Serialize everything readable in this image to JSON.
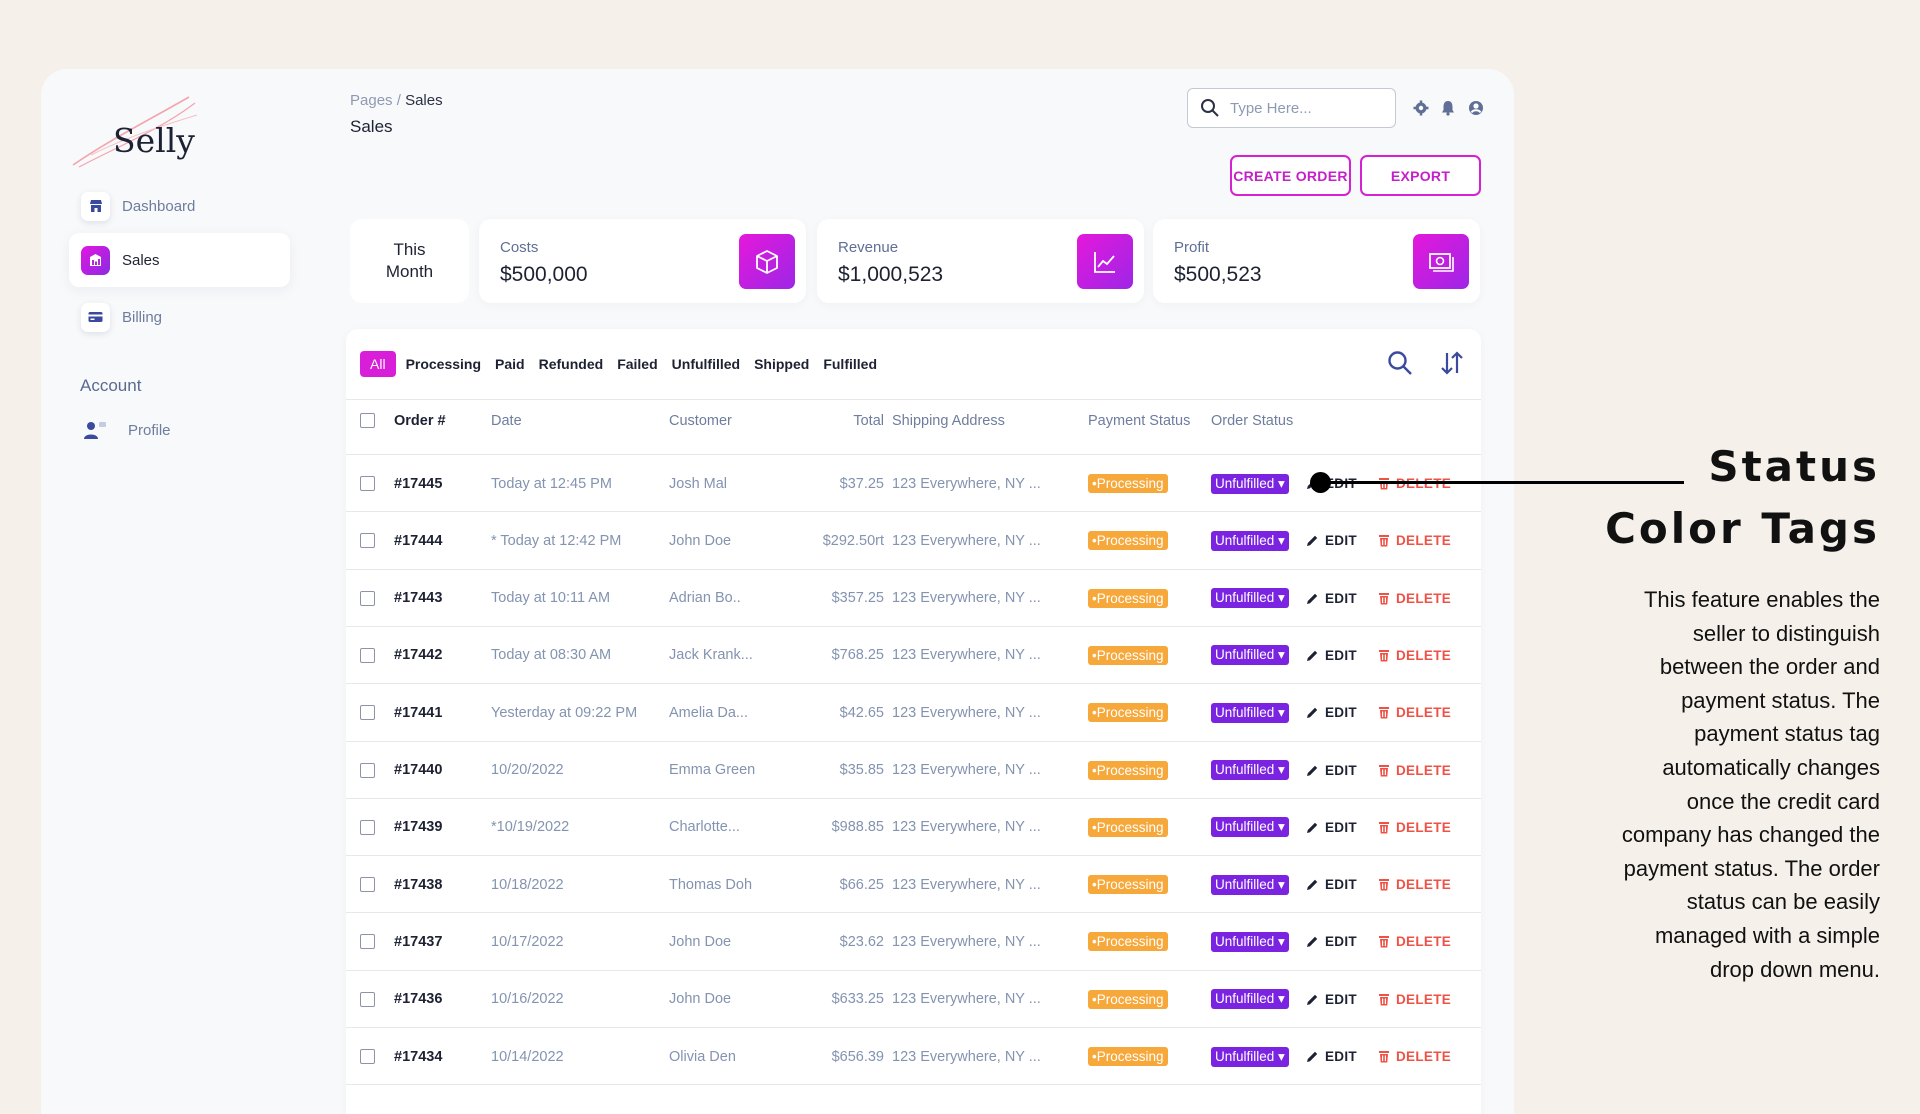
{
  "brand": {
    "name": "Selly"
  },
  "sidebar": {
    "items": [
      {
        "label": "Dashboard",
        "icon": "store-icon"
      },
      {
        "label": "Sales",
        "icon": "chart-bar-icon"
      },
      {
        "label": "Billing",
        "icon": "credit-card-icon"
      }
    ],
    "section_label": "Account",
    "account_items": [
      {
        "label": "Profile",
        "icon": "user-icon"
      }
    ]
  },
  "header": {
    "breadcrumb_root": "Pages",
    "breadcrumb_sep": "/",
    "breadcrumb_current": "Sales",
    "title": "Sales",
    "search_placeholder": "Type Here..."
  },
  "actions": {
    "create_order": "CREATE ORDER",
    "export": "EXPORT"
  },
  "stats": {
    "period_line1": "This",
    "period_line2": "Month",
    "cards": [
      {
        "label": "Costs",
        "value": "$500,000",
        "icon": "cube-icon"
      },
      {
        "label": "Revenue",
        "value": "$1,000,523",
        "icon": "line-chart-icon"
      },
      {
        "label": "Profit",
        "value": "$500,523",
        "icon": "money-icon"
      }
    ]
  },
  "filters": [
    "All",
    "Processing",
    "Paid",
    "Refunded",
    "Failed",
    "Unfulfilled",
    "Shipped",
    "Fulfilled"
  ],
  "table": {
    "columns": [
      "Order #",
      "Date",
      "Customer",
      "Total",
      "Shipping Address",
      "Payment Status",
      "Order Status"
    ],
    "edit_label": "EDIT",
    "delete_label": "DELETE",
    "rows": [
      {
        "order": "#17445",
        "date": "Today at 12:45 PM",
        "customer": "Josh Mal",
        "total": "$37.25",
        "address": "123 Everywhere, NY ...",
        "payment": "•Processing",
        "status": "Unfulfilled ▾"
      },
      {
        "order": "#17444",
        "date": "* Today at 12:42 PM",
        "customer": "John Doe",
        "total": "$292.50rt",
        "address": "123 Everywhere, NY ...",
        "payment": "•Processing",
        "status": "Unfulfilled ▾"
      },
      {
        "order": "#17443",
        "date": "Today at 10:11 AM",
        "customer": "Adrian Bo..",
        "total": "$357.25",
        "address": "123 Everywhere, NY ...",
        "payment": "•Processing",
        "status": "Unfulfilled ▾"
      },
      {
        "order": "#17442",
        "date": "Today at 08:30 AM",
        "customer": "Jack Krank...",
        "total": "$768.25",
        "address": "123 Everywhere, NY ...",
        "payment": "•Processing",
        "status": "Unfulfilled ▾"
      },
      {
        "order": "#17441",
        "date": "Yesterday at 09:22 PM",
        "customer": "Amelia Da...",
        "total": "$42.65",
        "address": "123 Everywhere, NY ...",
        "payment": "•Processing",
        "status": "Unfulfilled ▾"
      },
      {
        "order": "#17440",
        "date": "10/20/2022",
        "customer": "Emma Green",
        "total": "$35.85",
        "address": "123 Everywhere, NY ...",
        "payment": "•Processing",
        "status": "Unfulfilled ▾"
      },
      {
        "order": "#17439",
        "date": "*10/19/2022",
        "customer": "Charlotte...",
        "total": "$988.85",
        "address": "123 Everywhere, NY ...",
        "payment": "•Processing",
        "status": "Unfulfilled ▾"
      },
      {
        "order": "#17438",
        "date": "10/18/2022",
        "customer": "Thomas Doh",
        "total": "$66.25",
        "address": "123 Everywhere, NY ...",
        "payment": "•Processing",
        "status": "Unfulfilled ▾"
      },
      {
        "order": "#17437",
        "date": "10/17/2022",
        "customer": "John Doe",
        "total": "$23.62",
        "address": "123 Everywhere, NY ...",
        "payment": "•Processing",
        "status": "Unfulfilled ▾"
      },
      {
        "order": "#17436",
        "date": "10/16/2022",
        "customer": "John Doe",
        "total": "$633.25",
        "address": "123 Everywhere, NY ...",
        "payment": "•Processing",
        "status": "Unfulfilled ▾"
      },
      {
        "order": "#17434",
        "date": "10/14/2022",
        "customer": "Olivia Den",
        "total": "$656.39",
        "address": "123 Everywhere, NY ...",
        "payment": "•Processing",
        "status": "Unfulfilled ▾"
      }
    ]
  },
  "annotation": {
    "title_line1": "Status",
    "title_line2": "Color Tags",
    "body": "This feature enables the seller to distinguish between the order and payment status. The payment status tag automatically changes once the credit card company has changed the payment status. The order status can be easily managed  with a simple drop down menu."
  },
  "colors": {
    "accent": "#d81ed8",
    "payment_tag": "#f6a83a",
    "order_tag": "#7a23e0",
    "delete": "#ee5246",
    "background": "#f5f1ea"
  }
}
